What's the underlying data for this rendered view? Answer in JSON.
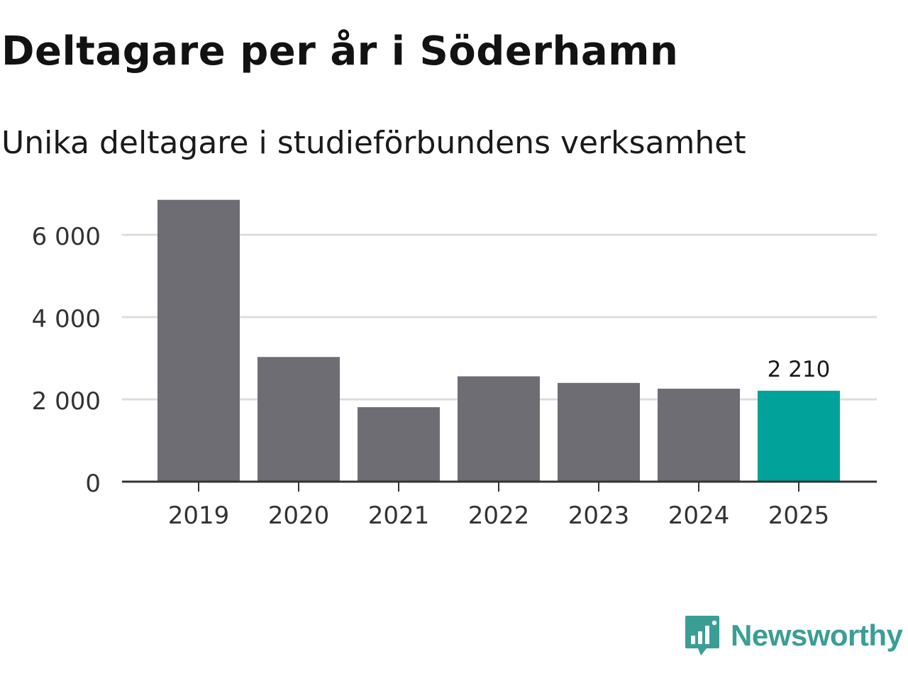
{
  "title": "Deltagare per år i Söderhamn",
  "subtitle": "Unika deltagare i studieförbundens verksamhet",
  "brand": {
    "name": "Newsworthy",
    "color": "#3a9e95",
    "icon": "newsworthy-logo-icon"
  },
  "colors": {
    "bar_default": "#6e6d74",
    "bar_highlight": "#00a29a",
    "grid": "#dcdcdc",
    "axis": "#333333",
    "tick_text": "#333333"
  },
  "chart_data": {
    "type": "bar",
    "title": "Deltagare per år i Söderhamn",
    "subtitle": "Unika deltagare i studieförbundens verksamhet",
    "xlabel": "",
    "ylabel": "",
    "categories": [
      "2019",
      "2020",
      "2021",
      "2022",
      "2023",
      "2024",
      "2025"
    ],
    "values": [
      6850,
      3030,
      1810,
      2560,
      2400,
      2260,
      2210
    ],
    "highlight_index": 6,
    "data_labels": [
      {
        "index": 6,
        "text": "2 210"
      }
    ],
    "ylim": [
      0,
      7000
    ],
    "yticks": [
      0,
      2000,
      4000,
      6000
    ],
    "ytick_labels": [
      "0",
      "2 000",
      "4 000",
      "6 000"
    ],
    "grid": true,
    "legend": "none"
  }
}
